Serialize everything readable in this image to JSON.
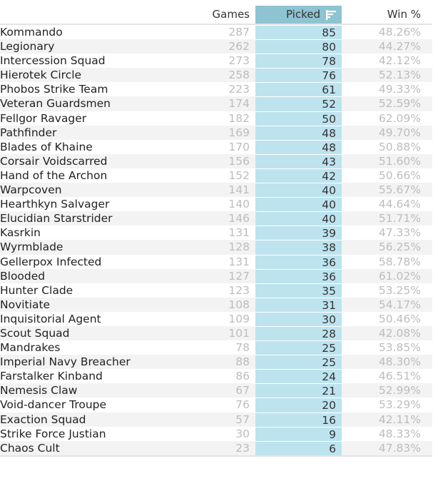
{
  "headers": {
    "games": "Games",
    "picked": "Picked",
    "win": "Win %"
  },
  "rows": [
    {
      "name": "Kommando",
      "games": "287",
      "picked": "85",
      "win": "48.26%"
    },
    {
      "name": "Legionary",
      "games": "262",
      "picked": "80",
      "win": "44.27%"
    },
    {
      "name": "Intercession Squad",
      "games": "273",
      "picked": "78",
      "win": "42.12%"
    },
    {
      "name": "Hierotek Circle",
      "games": "258",
      "picked": "76",
      "win": "52.13%"
    },
    {
      "name": "Phobos Strike Team",
      "games": "223",
      "picked": "61",
      "win": "49.33%"
    },
    {
      "name": "Veteran Guardsmen",
      "games": "174",
      "picked": "52",
      "win": "52.59%"
    },
    {
      "name": "Fellgor Ravager",
      "games": "182",
      "picked": "50",
      "win": "62.09%"
    },
    {
      "name": "Pathfinder",
      "games": "169",
      "picked": "48",
      "win": "49.70%"
    },
    {
      "name": "Blades of Khaine",
      "games": "170",
      "picked": "48",
      "win": "50.88%"
    },
    {
      "name": "Corsair Voidscarred",
      "games": "156",
      "picked": "43",
      "win": "51.60%"
    },
    {
      "name": "Hand of the Archon",
      "games": "152",
      "picked": "42",
      "win": "50.66%"
    },
    {
      "name": "Warpcoven",
      "games": "141",
      "picked": "40",
      "win": "55.67%"
    },
    {
      "name": "Hearthkyn Salvager",
      "games": "140",
      "picked": "40",
      "win": "44.64%"
    },
    {
      "name": "Elucidian Starstrider",
      "games": "146",
      "picked": "40",
      "win": "51.71%"
    },
    {
      "name": "Kasrkin",
      "games": "131",
      "picked": "39",
      "win": "47.33%"
    },
    {
      "name": "Wyrmblade",
      "games": "128",
      "picked": "38",
      "win": "56.25%"
    },
    {
      "name": "Gellerpox Infected",
      "games": "131",
      "picked": "36",
      "win": "58.78%"
    },
    {
      "name": "Blooded",
      "games": "127",
      "picked": "36",
      "win": "61.02%"
    },
    {
      "name": "Hunter Clade",
      "games": "123",
      "picked": "35",
      "win": "53.25%"
    },
    {
      "name": "Novitiate",
      "games": "108",
      "picked": "31",
      "win": "54.17%"
    },
    {
      "name": "Inquisitorial Agent",
      "games": "109",
      "picked": "30",
      "win": "50.46%"
    },
    {
      "name": "Scout Squad",
      "games": "101",
      "picked": "28",
      "win": "42.08%"
    },
    {
      "name": "Mandrakes",
      "games": "78",
      "picked": "25",
      "win": "53.85%"
    },
    {
      "name": "Imperial Navy Breacher",
      "games": "88",
      "picked": "25",
      "win": "48.30%"
    },
    {
      "name": "Farstalker Kinband",
      "games": "86",
      "picked": "24",
      "win": "46.51%"
    },
    {
      "name": "Nemesis Claw",
      "games": "67",
      "picked": "21",
      "win": "52.99%"
    },
    {
      "name": "Void-dancer Troupe",
      "games": "76",
      "picked": "20",
      "win": "53.29%"
    },
    {
      "name": "Exaction Squad",
      "games": "57",
      "picked": "16",
      "win": "42.11%"
    },
    {
      "name": "Strike Force Justian",
      "games": "30",
      "picked": "9",
      "win": "48.33%"
    },
    {
      "name": "Chaos Cult",
      "games": "23",
      "picked": "6",
      "win": "47.83%"
    }
  ]
}
